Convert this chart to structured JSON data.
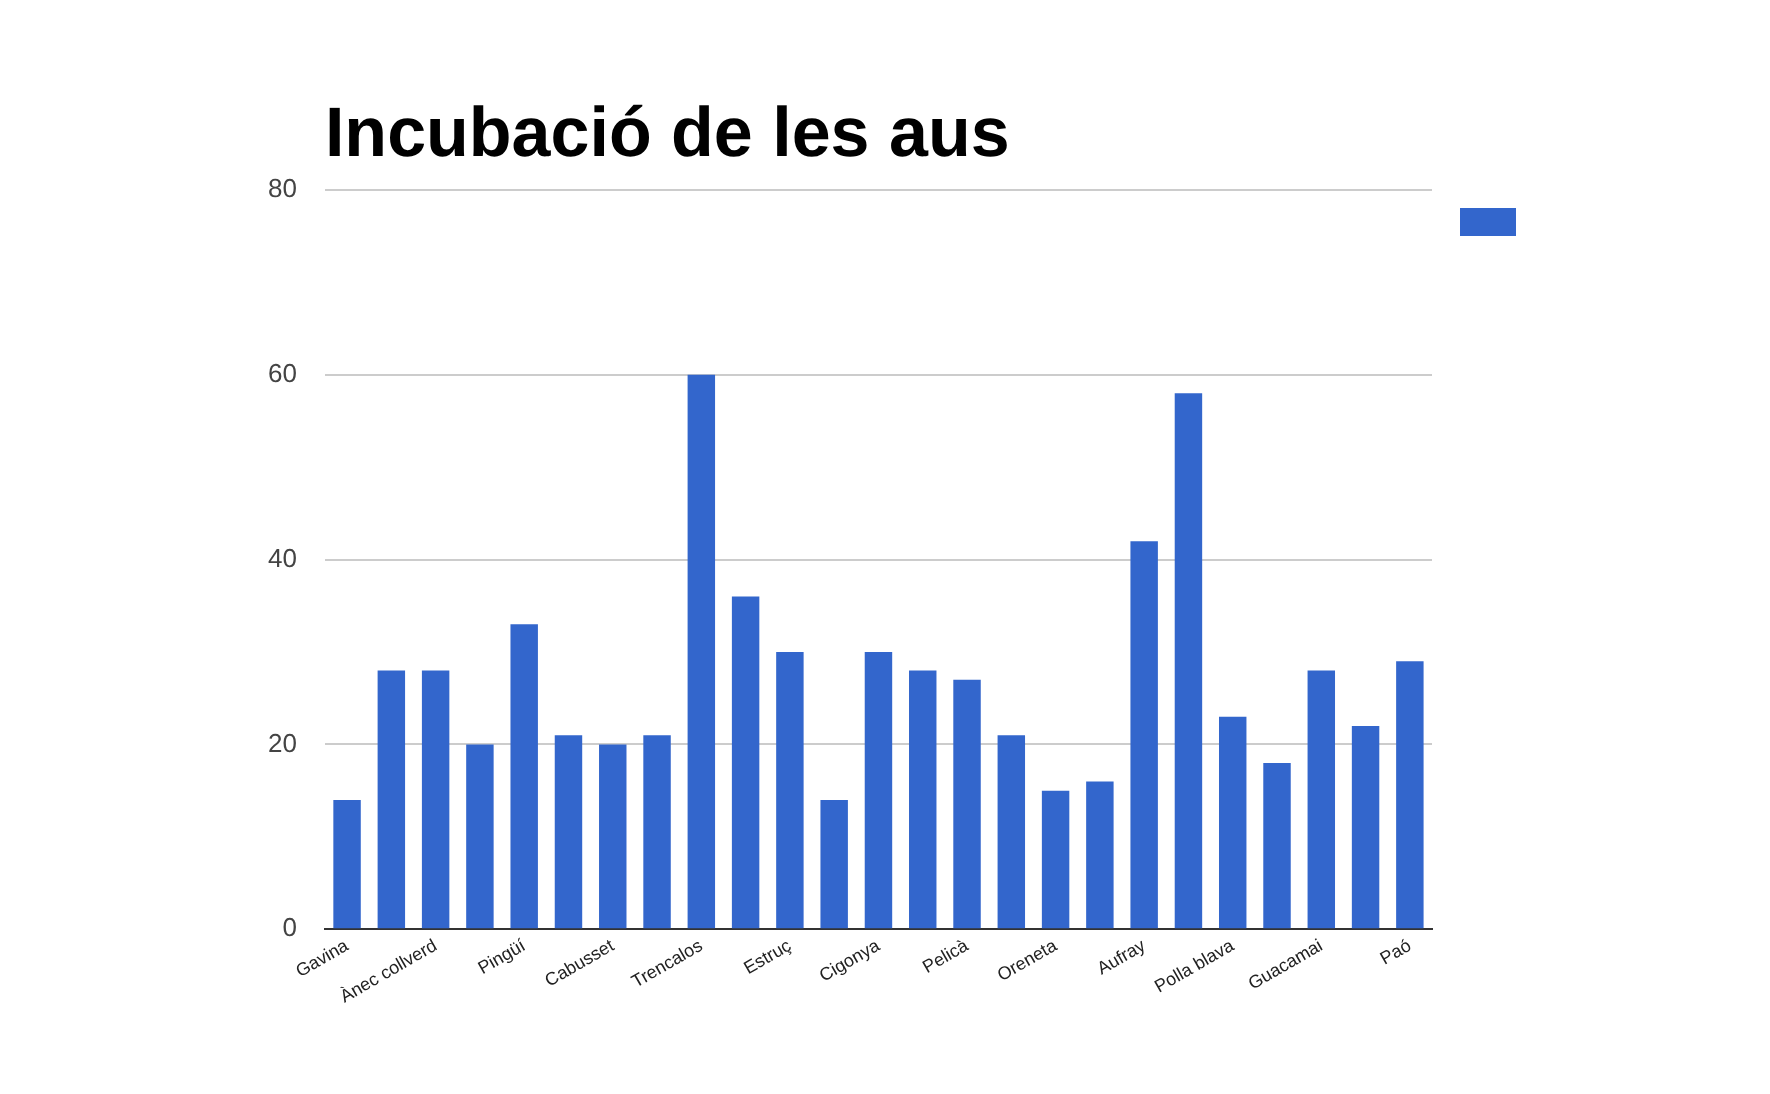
{
  "chart_data": {
    "type": "bar",
    "title": "Incubació de les aus",
    "categories": [
      "Gavina",
      null,
      "Ànec collverd",
      null,
      "Pingüí",
      null,
      "Cabusset",
      null,
      "Trencalos",
      null,
      "Estruç",
      null,
      "Cigonya",
      null,
      "Pelicà",
      null,
      "Oreneta",
      null,
      "Aufray",
      null,
      "Polla blava",
      null,
      "Guacamai",
      null,
      "Paó"
    ],
    "series": [
      {
        "color": "#3366cc",
        "values": [
          14,
          28,
          28,
          20,
          33,
          21,
          20,
          21,
          60,
          36,
          30,
          14,
          30,
          28,
          27,
          21,
          15,
          16,
          42,
          58,
          23,
          18,
          28,
          22,
          29
        ]
      }
    ],
    "ylim": [
      0,
      80
    ],
    "yticks": [
      0,
      20,
      40,
      60,
      80
    ],
    "grid": "y"
  }
}
